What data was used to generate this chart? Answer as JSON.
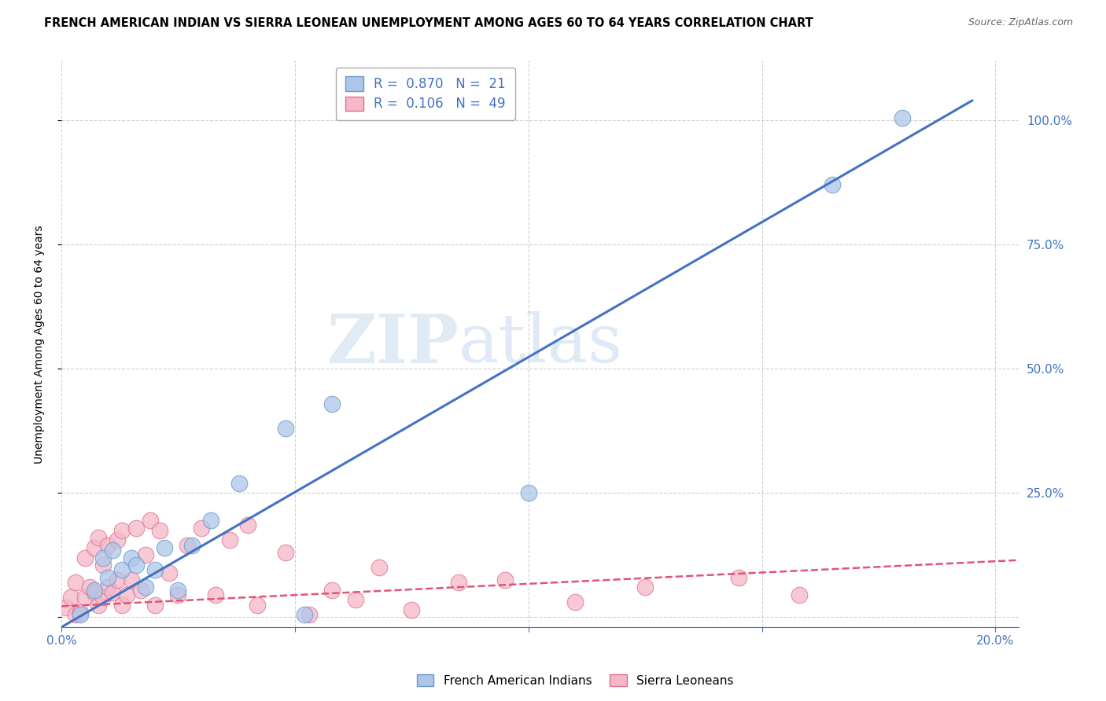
{
  "title": "FRENCH AMERICAN INDIAN VS SIERRA LEONEAN UNEMPLOYMENT AMONG AGES 60 TO 64 YEARS CORRELATION CHART",
  "source": "Source: ZipAtlas.com",
  "ylabel": "Unemployment Among Ages 60 to 64 years",
  "xlim": [
    0.0,
    0.205
  ],
  "ylim": [
    -0.02,
    1.12
  ],
  "x_ticks": [
    0.0,
    0.05,
    0.1,
    0.15,
    0.2
  ],
  "x_tick_labels": [
    "0.0%",
    "",
    "",
    "",
    "20.0%"
  ],
  "y_ticks": [
    0.0,
    0.25,
    0.5,
    0.75,
    1.0
  ],
  "y_tick_labels": [
    "",
    "25.0%",
    "50.0%",
    "75.0%",
    "100.0%"
  ],
  "watermark_zip": "ZIP",
  "watermark_atlas": "atlas",
  "legend_blue_R": "0.870",
  "legend_blue_N": "21",
  "legend_pink_R": "0.106",
  "legend_pink_N": "49",
  "legend_label_blue": "French American Indians",
  "legend_label_pink": "Sierra Leoneans",
  "blue_scatter_x": [
    0.004,
    0.007,
    0.009,
    0.01,
    0.011,
    0.013,
    0.015,
    0.016,
    0.018,
    0.02,
    0.022,
    0.025,
    0.028,
    0.032,
    0.038,
    0.048,
    0.052,
    0.058,
    0.1,
    0.165,
    0.18
  ],
  "blue_scatter_y": [
    0.005,
    0.055,
    0.12,
    0.08,
    0.135,
    0.095,
    0.12,
    0.105,
    0.06,
    0.095,
    0.14,
    0.055,
    0.145,
    0.195,
    0.27,
    0.38,
    0.005,
    0.43,
    0.25,
    0.87,
    1.005
  ],
  "pink_scatter_x": [
    0.001,
    0.002,
    0.003,
    0.003,
    0.004,
    0.005,
    0.005,
    0.006,
    0.007,
    0.007,
    0.008,
    0.008,
    0.009,
    0.009,
    0.01,
    0.01,
    0.011,
    0.012,
    0.012,
    0.013,
    0.013,
    0.014,
    0.015,
    0.016,
    0.017,
    0.018,
    0.019,
    0.02,
    0.021,
    0.023,
    0.025,
    0.027,
    0.03,
    0.033,
    0.036,
    0.04,
    0.042,
    0.048,
    0.053,
    0.058,
    0.063,
    0.068,
    0.075,
    0.085,
    0.095,
    0.11,
    0.125,
    0.145,
    0.158
  ],
  "pink_scatter_y": [
    0.02,
    0.04,
    0.005,
    0.07,
    0.01,
    0.04,
    0.12,
    0.06,
    0.05,
    0.14,
    0.025,
    0.16,
    0.04,
    0.105,
    0.06,
    0.145,
    0.05,
    0.075,
    0.155,
    0.025,
    0.175,
    0.045,
    0.075,
    0.18,
    0.055,
    0.125,
    0.195,
    0.025,
    0.175,
    0.09,
    0.045,
    0.145,
    0.18,
    0.045,
    0.155,
    0.185,
    0.025,
    0.13,
    0.005,
    0.055,
    0.035,
    0.1,
    0.015,
    0.07,
    0.075,
    0.03,
    0.06,
    0.08,
    0.045
  ],
  "blue_line_x": [
    0.0,
    0.195
  ],
  "blue_line_y": [
    -0.02,
    1.04
  ],
  "pink_line_x": [
    0.0,
    0.205
  ],
  "pink_line_y": [
    0.022,
    0.115
  ],
  "blue_line_color": "#4472C4",
  "pink_line_color": "#E05575",
  "blue_scatter_facecolor": "#AEC6E8",
  "blue_scatter_edgecolor": "#6699CC",
  "pink_scatter_facecolor": "#F4B8C8",
  "pink_scatter_edgecolor": "#E07090",
  "grid_color": "#CCCCCC",
  "axis_color": "#4472C4",
  "background_color": "#FFFFFF",
  "title_fontsize": 10.5,
  "source_fontsize": 9,
  "ylabel_fontsize": 10
}
